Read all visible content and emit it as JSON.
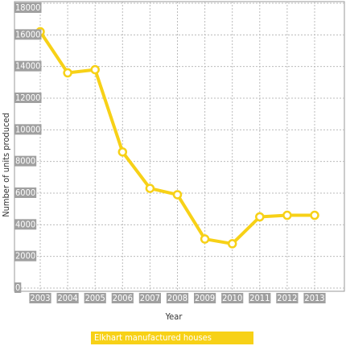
{
  "chart_data": {
    "type": "line",
    "x_label": "Year",
    "y_label": "Number of units produced",
    "categories": [
      "2003",
      "2004",
      "2005",
      "2006",
      "2007",
      "2008",
      "2009",
      "2010",
      "2011",
      "2012",
      "2013"
    ],
    "series": [
      {
        "name": "Elkhart manufactured houses",
        "color": "#f7d117",
        "values": [
          16200,
          13600,
          13800,
          8600,
          6300,
          5900,
          3100,
          2800,
          4500,
          4600,
          4600
        ]
      }
    ],
    "ylim": [
      0,
      18000
    ],
    "yticks": [
      0,
      2000,
      4000,
      6000,
      8000,
      10000,
      12000,
      14000,
      16000,
      18000
    ],
    "grid": true
  }
}
